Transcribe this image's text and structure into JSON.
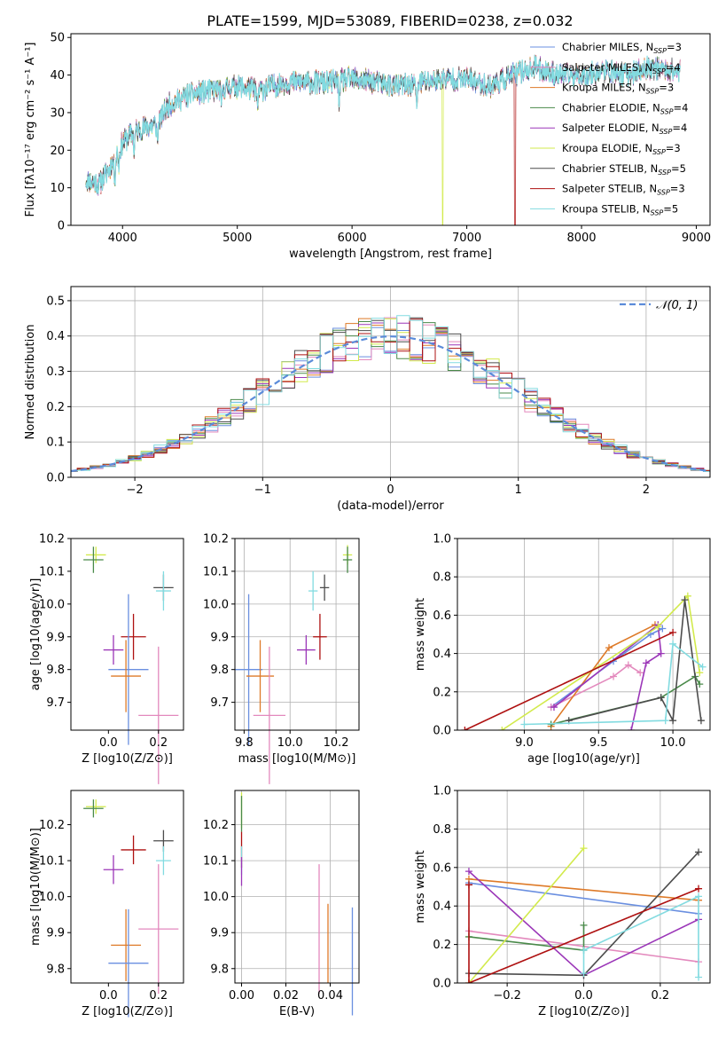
{
  "title": "PLATE=1599, MJD=53089, FIBERID=0238, z=0.032",
  "colors": {
    "Chabrier MILES": "#6a8fe0",
    "Salpeter MILES": "#e389bd",
    "Kroupa MILES": "#de7a28",
    "Chabrier ELODIE": "#4a8a4a",
    "Salpeter ELODIE": "#9b36b8",
    "Kroupa ELODIE": "#d2ea4c",
    "Chabrier STELIB": "#4c4c4c",
    "Salpeter STELIB": "#ae1010",
    "Kroupa STELIB": "#82dbe0"
  },
  "chart_data": [
    {
      "type": "line",
      "xlabel": "wavelength [Angstrom, rest frame]",
      "ylabel": "Flux [fλ10⁻¹⁷ erg cm⁻² s⁻¹ A⁻¹]",
      "xlim": [
        3550,
        9120
      ],
      "ylim": [
        0,
        51
      ],
      "xticks": [
        "4000",
        "5000",
        "6000",
        "7000",
        "8000",
        "9000"
      ],
      "yticks": [
        "0",
        "10",
        "20",
        "30",
        "40",
        "50"
      ],
      "legend": [
        {
          "name": "Chabrier MILES",
          "label": "Chabrier MILES, N",
          "nssp": "3"
        },
        {
          "name": "Salpeter MILES",
          "label": "Salpeter MILES, N",
          "nssp": "4"
        },
        {
          "name": "Kroupa MILES",
          "label": "Kroupa MILES, N",
          "nssp": "3"
        },
        {
          "name": "Chabrier ELODIE",
          "label": "Chabrier ELODIE, N",
          "nssp": "4"
        },
        {
          "name": "Salpeter ELODIE",
          "label": "Salpeter ELODIE, N",
          "nssp": "4"
        },
        {
          "name": "Kroupa ELODIE",
          "label": "Kroupa ELODIE, N",
          "nssp": "3"
        },
        {
          "name": "Chabrier STELIB",
          "label": "Chabrier STELIB, N",
          "nssp": "5"
        },
        {
          "name": "Salpeter STELIB",
          "label": "Salpeter STELIB, N",
          "nssp": "3"
        },
        {
          "name": "Kroupa STELIB",
          "label": "Kroupa STELIB, N",
          "nssp": "5"
        }
      ],
      "legend_sub": "SSP",
      "continuum": [
        [
          3680,
          12
        ],
        [
          3800,
          11
        ],
        [
          3900,
          16
        ],
        [
          4000,
          22
        ],
        [
          4100,
          25
        ],
        [
          4200,
          26
        ],
        [
          4300,
          27
        ],
        [
          4400,
          32
        ],
        [
          4600,
          35
        ],
        [
          4800,
          36
        ],
        [
          5000,
          37
        ],
        [
          5200,
          36
        ],
        [
          5400,
          38
        ],
        [
          5600,
          38
        ],
        [
          5800,
          38
        ],
        [
          6000,
          39
        ],
        [
          6200,
          38
        ],
        [
          6400,
          37
        ],
        [
          6600,
          38
        ],
        [
          6800,
          39
        ],
        [
          7000,
          39
        ],
        [
          7200,
          37
        ],
        [
          7400,
          40
        ],
        [
          7600,
          42
        ],
        [
          7800,
          40
        ],
        [
          8000,
          40
        ],
        [
          8200,
          41
        ],
        [
          8400,
          40
        ],
        [
          8600,
          42
        ],
        [
          8860,
          41
        ]
      ],
      "absorption_dips": [
        [
          3933,
          5
        ],
        [
          3968,
          4
        ],
        [
          4101,
          5
        ],
        [
          4304,
          5
        ],
        [
          4861,
          4
        ],
        [
          5175,
          5
        ],
        [
          5890,
          6
        ],
        [
          6563,
          6
        ]
      ],
      "drops": [
        {
          "series": "Kroupa ELODIE",
          "x": 6790
        },
        {
          "series": "Salpeter STELIB",
          "x": 7420
        }
      ],
      "x_range_end": {
        "Kroupa ELODIE": 6800,
        "Salpeter STELIB": 7430,
        "default": 8860
      }
    },
    {
      "type": "line",
      "xlabel": "(data-model)/error",
      "ylabel": "Normed distribution",
      "xlim": [
        -2.5,
        2.5
      ],
      "ylim": [
        0,
        0.54
      ],
      "xticks": [
        "−2",
        "−1",
        "0",
        "1",
        "2"
      ],
      "yticks": [
        "0.0",
        "0.1",
        "0.2",
        "0.3",
        "0.4",
        "0.5"
      ],
      "legend": "𝒩(0, 1)",
      "histogram_bin_width": 0.1,
      "reference_curve": "normal(0,1) pdf"
    },
    {
      "type": "scatter",
      "xlabel": "Z [log10(Z/Z⊙)]",
      "ylabel": "age  [log10(age/yr)]",
      "xlim": [
        -0.15,
        0.3
      ],
      "ylim": [
        9.615,
        10.2
      ],
      "xticks": [
        "0.0",
        "0.2"
      ],
      "yticks": [
        "9.7",
        "9.8",
        "9.9",
        "10.0",
        "10.1",
        "10.2"
      ],
      "points": [
        {
          "series": "Kroupa ELODIE",
          "x": -0.05,
          "y": 10.15,
          "ex": 0.04,
          "ey": 0.025
        },
        {
          "series": "Chabrier ELODIE",
          "x": -0.06,
          "y": 10.135,
          "ex": 0.04,
          "ey": 0.04
        },
        {
          "series": "Chabrier STELIB",
          "x": 0.22,
          "y": 10.05,
          "ex": 0.04,
          "ey": 0.04
        },
        {
          "series": "Kroupa STELIB",
          "x": 0.22,
          "y": 10.04,
          "ex": 0.03,
          "ey": 0.06
        },
        {
          "series": "Salpeter STELIB",
          "x": 0.1,
          "y": 9.9,
          "ex": 0.05,
          "ey": 0.07
        },
        {
          "series": "Salpeter ELODIE",
          "x": 0.02,
          "y": 9.86,
          "ex": 0.04,
          "ey": 0.045
        },
        {
          "series": "Chabrier MILES",
          "x": 0.08,
          "y": 9.8,
          "ex": 0.08,
          "ey": 0.23
        },
        {
          "series": "Kroupa MILES",
          "x": 0.07,
          "y": 9.78,
          "ex": 0.06,
          "ey": 0.11
        },
        {
          "series": "Salpeter MILES",
          "x": 0.2,
          "y": 9.66,
          "ex": 0.08,
          "ey": 0.21
        }
      ]
    },
    {
      "type": "scatter",
      "xlabel": "mass [log10(M/M⊙)]",
      "ylabel": "",
      "xlim": [
        9.76,
        10.3
      ],
      "ylim": [
        9.615,
        10.2
      ],
      "xticks": [
        "9.8",
        "10.0",
        "10.2"
      ],
      "yticks": [
        "9.7",
        "9.8",
        "9.9",
        "10.0",
        "10.1",
        "10.2"
      ],
      "points": [
        {
          "series": "Kroupa ELODIE",
          "x": 10.25,
          "y": 10.15,
          "ex": 0.02,
          "ey": 0.03
        },
        {
          "series": "Chabrier ELODIE",
          "x": 10.25,
          "y": 10.135,
          "ex": 0.02,
          "ey": 0.04
        },
        {
          "series": "Chabrier STELIB",
          "x": 10.15,
          "y": 10.05,
          "ex": 0.02,
          "ey": 0.04
        },
        {
          "series": "Kroupa STELIB",
          "x": 10.1,
          "y": 10.04,
          "ex": 0.02,
          "ey": 0.06
        },
        {
          "series": "Salpeter STELIB",
          "x": 10.13,
          "y": 9.9,
          "ex": 0.03,
          "ey": 0.07
        },
        {
          "series": "Salpeter ELODIE",
          "x": 10.07,
          "y": 9.86,
          "ex": 0.04,
          "ey": 0.045
        },
        {
          "series": "Chabrier MILES",
          "x": 9.82,
          "y": 9.8,
          "ex": 0.06,
          "ey": 0.23
        },
        {
          "series": "Kroupa MILES",
          "x": 9.87,
          "y": 9.78,
          "ex": 0.06,
          "ey": 0.11
        },
        {
          "series": "Salpeter MILES",
          "x": 9.91,
          "y": 9.66,
          "ex": 0.07,
          "ey": 0.21
        }
      ]
    },
    {
      "type": "line",
      "xlabel": "age  [log10(age/yr)]",
      "ylabel": "mass weight",
      "xlim": [
        8.55,
        10.25
      ],
      "ylim": [
        0,
        1
      ],
      "xticks": [
        "9.0",
        "9.5",
        "10.0"
      ],
      "yticks": [
        "0.0",
        "0.2",
        "0.4",
        "0.6",
        "0.8",
        "1.0"
      ],
      "series": [
        {
          "name": "Chabrier MILES",
          "points": [
            [
              9.18,
              0.12
            ],
            [
              9.6,
              0.36
            ],
            [
              9.85,
              0.5
            ],
            [
              9.93,
              0.53
            ]
          ]
        },
        {
          "name": "Salpeter MILES",
          "points": [
            [
              9.18,
              0.12
            ],
            [
              9.6,
              0.28
            ],
            [
              9.7,
              0.34
            ],
            [
              9.78,
              0.3
            ]
          ]
        },
        {
          "name": "Kroupa MILES",
          "points": [
            [
              9.18,
              0.02
            ],
            [
              9.57,
              0.43
            ],
            [
              9.88,
              0.55
            ]
          ]
        },
        {
          "name": "Chabrier ELODIE",
          "points": [
            [
              9.18,
              0.03
            ],
            [
              9.92,
              0.17
            ],
            [
              10.15,
              0.28
            ],
            [
              10.18,
              0.24
            ]
          ]
        },
        {
          "name": "Salpeter ELODIE",
          "points": [
            [
              9.2,
              0.12
            ],
            [
              9.9,
              0.55
            ],
            [
              9.92,
              0.4
            ],
            [
              9.82,
              0.35
            ],
            [
              9.72,
              0.0
            ]
          ]
        },
        {
          "name": "Kroupa ELODIE",
          "points": [
            [
              8.85,
              0.0
            ],
            [
              9.9,
              0.54
            ],
            [
              10.1,
              0.7
            ],
            [
              10.18,
              0.3
            ]
          ]
        },
        {
          "name": "Chabrier STELIB",
          "points": [
            [
              9.3,
              0.05
            ],
            [
              9.92,
              0.17
            ],
            [
              10.0,
              0.05
            ],
            [
              10.08,
              0.68
            ],
            [
              10.19,
              0.05
            ]
          ]
        },
        {
          "name": "Salpeter STELIB",
          "points": [
            [
              8.6,
              0.0
            ],
            [
              10.0,
              0.51
            ]
          ]
        },
        {
          "name": "Kroupa STELIB",
          "points": [
            [
              9.0,
              0.03
            ],
            [
              9.95,
              0.05
            ],
            [
              10.0,
              0.45
            ],
            [
              10.2,
              0.33
            ]
          ]
        }
      ]
    },
    {
      "type": "scatter",
      "xlabel": "Z [log10(Z/Z⊙)]",
      "ylabel": "mass [log10(M/M⊙)]",
      "xlim": [
        -0.15,
        0.3
      ],
      "ylim": [
        9.76,
        10.295
      ],
      "xticks": [
        "0.0",
        "0.2"
      ],
      "yticks": [
        "9.8",
        "9.9",
        "10.0",
        "10.1",
        "10.2"
      ],
      "points": [
        {
          "series": "Kroupa ELODIE",
          "x": -0.05,
          "y": 10.25,
          "ex": 0.04,
          "ey": 0.02
        },
        {
          "series": "Chabrier ELODIE",
          "x": -0.06,
          "y": 10.245,
          "ex": 0.04,
          "ey": 0.025
        },
        {
          "series": "Chabrier STELIB",
          "x": 0.22,
          "y": 10.155,
          "ex": 0.04,
          "ey": 0.03
        },
        {
          "series": "Salpeter STELIB",
          "x": 0.1,
          "y": 10.13,
          "ex": 0.05,
          "ey": 0.04
        },
        {
          "series": "Kroupa STELIB",
          "x": 0.22,
          "y": 10.1,
          "ex": 0.03,
          "ey": 0.04
        },
        {
          "series": "Salpeter ELODIE",
          "x": 0.02,
          "y": 10.075,
          "ex": 0.04,
          "ey": 0.04
        },
        {
          "series": "Salpeter MILES",
          "x": 0.2,
          "y": 9.91,
          "ex": 0.08,
          "ey": 0.18
        },
        {
          "series": "Kroupa MILES",
          "x": 0.07,
          "y": 9.865,
          "ex": 0.06,
          "ey": 0.1
        },
        {
          "series": "Chabrier MILES",
          "x": 0.08,
          "y": 9.815,
          "ex": 0.08,
          "ey": 0.15
        }
      ]
    },
    {
      "type": "scatter",
      "xlabel": "E(B-V)",
      "ylabel": "",
      "xlim": [
        -0.003,
        0.053
      ],
      "ylim": [
        9.76,
        10.295
      ],
      "xticks": [
        "0.00",
        "0.02",
        "0.04"
      ],
      "yticks": [
        "9.8",
        "9.9",
        "10.0",
        "10.1",
        "10.2"
      ],
      "points": [
        {
          "series": "Kroupa ELODIE",
          "x": 0.0,
          "y": 10.24,
          "ex": 0,
          "ey": 0.05
        },
        {
          "series": "Chabrier ELODIE",
          "x": 0.0,
          "y": 10.23,
          "ex": 0,
          "ey": 0.05
        },
        {
          "series": "Salpeter STELIB",
          "x": 0.0,
          "y": 10.13,
          "ex": 0,
          "ey": 0.05
        },
        {
          "series": "Kroupa STELIB",
          "x": 0.0,
          "y": 10.1,
          "ex": 0,
          "ey": 0.04
        },
        {
          "series": "Salpeter ELODIE",
          "x": 0.0,
          "y": 10.07,
          "ex": 0,
          "ey": 0.04
        },
        {
          "series": "Salpeter MILES",
          "x": 0.035,
          "y": 9.91,
          "ex": 0,
          "ey": 0.18
        },
        {
          "series": "Kroupa MILES",
          "x": 0.039,
          "y": 9.87,
          "ex": 0,
          "ey": 0.11
        },
        {
          "series": "Chabrier MILES",
          "x": 0.05,
          "y": 9.82,
          "ex": 0,
          "ey": 0.15
        }
      ]
    },
    {
      "type": "line",
      "xlabel": "Z [log10(Z/Z⊙)]",
      "ylabel": "mass weight",
      "xlim": [
        -0.33,
        0.33
      ],
      "ylim": [
        0,
        1
      ],
      "xticks": [
        "−0.2",
        "0.0",
        "0.2"
      ],
      "yticks": [
        "0.0",
        "0.2",
        "0.4",
        "0.6",
        "0.8",
        "1.0"
      ],
      "series": [
        {
          "name": "Chabrier MILES",
          "points": [
            [
              -0.3,
              0.52
            ],
            [
              0.3,
              0.36
            ]
          ]
        },
        {
          "name": "Salpeter MILES",
          "points": [
            [
              -0.3,
              0.27
            ],
            [
              0.3,
              0.11
            ]
          ]
        },
        {
          "name": "Kroupa MILES",
          "points": [
            [
              -0.3,
              0.54
            ],
            [
              0.3,
              0.43
            ]
          ]
        },
        {
          "name": "Chabrier ELODIE",
          "points": [
            [
              -0.3,
              0.24
            ],
            [
              0.0,
              0.17
            ],
            [
              0.0,
              0.3
            ]
          ]
        },
        {
          "name": "Salpeter ELODIE",
          "points": [
            [
              -0.3,
              0.58
            ],
            [
              0.0,
              0.04
            ],
            [
              0.3,
              0.33
            ]
          ]
        },
        {
          "name": "Kroupa ELODIE",
          "points": [
            [
              -0.3,
              0.0
            ],
            [
              0.0,
              0.7
            ]
          ]
        },
        {
          "name": "Chabrier STELIB",
          "points": [
            [
              -0.3,
              0.05
            ],
            [
              0.0,
              0.04
            ],
            [
              0.3,
              0.68
            ]
          ]
        },
        {
          "name": "Salpeter STELIB",
          "points": [
            [
              -0.3,
              0.51
            ],
            [
              -0.3,
              0.0
            ],
            [
              0.3,
              0.49
            ]
          ]
        },
        {
          "name": "Kroupa STELIB",
          "points": [
            [
              0.0,
              0.05
            ],
            [
              0.0,
              0.17
            ],
            [
              0.3,
              0.45
            ],
            [
              0.3,
              0.03
            ]
          ]
        }
      ]
    }
  ]
}
